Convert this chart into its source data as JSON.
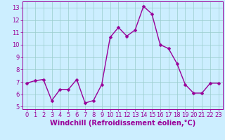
{
  "x": [
    0,
    1,
    2,
    3,
    4,
    5,
    6,
    7,
    8,
    9,
    10,
    11,
    12,
    13,
    14,
    15,
    16,
    17,
    18,
    19,
    20,
    21,
    22,
    23
  ],
  "y": [
    6.9,
    7.1,
    7.2,
    5.5,
    6.4,
    6.4,
    7.2,
    5.3,
    5.5,
    6.8,
    10.6,
    11.4,
    10.7,
    11.2,
    13.1,
    12.5,
    10.0,
    9.7,
    8.5,
    6.8,
    6.1,
    6.1,
    6.9,
    6.9
  ],
  "line_color": "#990099",
  "marker": "D",
  "marker_size": 2.5,
  "line_width": 1.0,
  "bg_color": "#cceeff",
  "grid_color": "#99cccc",
  "tick_color": "#990099",
  "label_color": "#990099",
  "xlabel": "Windchill (Refroidissement éolien,°C)",
  "xlim": [
    -0.5,
    23.5
  ],
  "ylim": [
    4.8,
    13.5
  ],
  "yticks": [
    5,
    6,
    7,
    8,
    9,
    10,
    11,
    12,
    13
  ],
  "xticks": [
    0,
    1,
    2,
    3,
    4,
    5,
    6,
    7,
    8,
    9,
    10,
    11,
    12,
    13,
    14,
    15,
    16,
    17,
    18,
    19,
    20,
    21,
    22,
    23
  ],
  "tick_fontsize": 6,
  "xlabel_fontsize": 7
}
